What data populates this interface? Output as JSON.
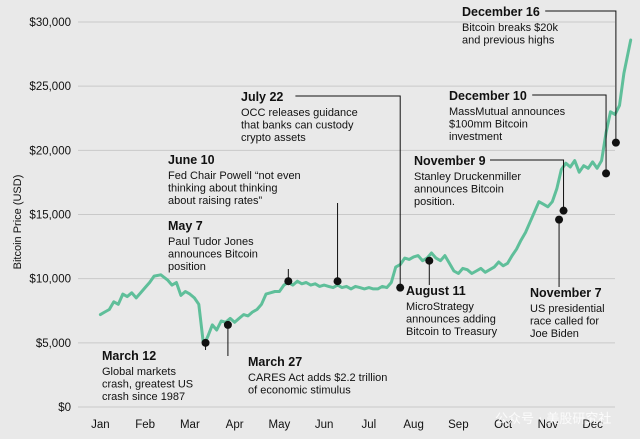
{
  "chart_data": {
    "type": "line",
    "ylabel": "Bitcoin Price (USD)",
    "ylim": [
      0,
      30000
    ],
    "y_ticks": [
      0,
      5000,
      10000,
      15000,
      20000,
      25000,
      30000
    ],
    "y_tick_labels": [
      "$0",
      "$5,000",
      "$10,000",
      "$15,000",
      "$20,000",
      "$25,000",
      "$30,000"
    ],
    "x_ticks": [
      "Jan",
      "Feb",
      "Mar",
      "Apr",
      "May",
      "Jun",
      "Jul",
      "Aug",
      "Sep",
      "Oct",
      "Nov",
      "Dec"
    ],
    "line_color": "#5fbf9a",
    "series": [
      {
        "x": [
          0.0,
          0.1,
          0.2,
          0.3,
          0.4,
          0.5,
          0.6,
          0.7,
          0.8,
          0.9,
          1.0,
          1.1,
          1.2,
          1.35,
          1.5,
          1.6,
          1.7,
          1.8,
          1.9,
          2.0,
          2.1,
          2.2,
          2.3,
          2.35,
          2.4,
          2.5,
          2.6,
          2.7,
          2.8,
          2.9,
          3.0,
          3.1,
          3.2,
          3.3,
          3.4,
          3.5,
          3.6,
          3.7,
          3.8,
          3.9,
          4.0,
          4.1,
          4.2,
          4.3,
          4.4,
          4.5,
          4.6,
          4.7,
          4.8,
          4.9,
          5.0,
          5.1,
          5.2,
          5.3,
          5.4,
          5.5,
          5.6,
          5.7,
          5.8,
          5.9,
          6.0,
          6.1,
          6.2,
          6.3,
          6.4,
          6.5,
          6.6,
          6.7,
          6.8,
          6.9,
          7.0,
          7.1,
          7.2,
          7.3,
          7.4,
          7.5,
          7.6,
          7.7,
          7.8,
          7.9,
          8.0,
          8.1,
          8.2,
          8.3,
          8.4,
          8.5,
          8.6,
          8.7,
          8.8,
          8.9,
          9.0,
          9.1,
          9.2,
          9.3,
          9.4,
          9.5,
          9.6,
          9.7,
          9.8,
          9.9,
          10.0,
          10.1,
          10.2,
          10.3,
          10.4,
          10.5,
          10.6,
          10.7,
          10.8,
          10.9,
          11.0,
          11.1,
          11.2,
          11.3,
          11.4,
          11.5,
          11.6,
          11.7,
          11.85
        ],
        "values": [
          7200,
          7400,
          7600,
          8200,
          8000,
          8800,
          8600,
          8900,
          8500,
          8900,
          9300,
          9700,
          10200,
          10300,
          9900,
          9500,
          9700,
          8700,
          9000,
          8800,
          8500,
          8000,
          5000,
          5100,
          5500,
          6400,
          6000,
          6700,
          6600,
          6900,
          6600,
          6900,
          7200,
          7100,
          7400,
          7600,
          8000,
          8800,
          8900,
          9000,
          9000,
          9500,
          9700,
          9500,
          9800,
          9600,
          9700,
          9500,
          9600,
          9400,
          9500,
          9400,
          9300,
          9500,
          9300,
          9400,
          9200,
          9400,
          9300,
          9200,
          9300,
          9200,
          9200,
          9400,
          9300,
          9700,
          10900,
          11100,
          11600,
          11500,
          11700,
          11800,
          11400,
          11600,
          12000,
          11600,
          11400,
          11800,
          11200,
          10600,
          10400,
          10800,
          10700,
          10400,
          10600,
          10800,
          10500,
          10700,
          10900,
          11300,
          11000,
          11200,
          11800,
          12300,
          13000,
          13600,
          14400,
          15200,
          16000,
          15800,
          15600,
          16000,
          17000,
          18500,
          19000,
          18700,
          19200,
          18300,
          18800,
          18600,
          19100,
          18600,
          19200,
          21400,
          23000,
          22800,
          23500,
          26000,
          28600
        ]
      }
    ],
    "annotations": [
      {
        "x": 2.35,
        "y": 5000,
        "title": "March 12",
        "lines": [
          "Global markets",
          "crash, greatest US",
          "crash since 1987"
        ]
      },
      {
        "x": 2.85,
        "y": 6400,
        "title": "March 27",
        "lines": [
          "CARES Act adds $2.2 trillion",
          "of economic stimulus"
        ]
      },
      {
        "x": 4.2,
        "y": 9800,
        "title": "May 7",
        "lines": [
          "Paul Tudor Jones",
          "announces Bitcoin",
          "position"
        ]
      },
      {
        "x": 5.3,
        "y": 9800,
        "title": "June 10",
        "lines": [
          "Fed Chair Powell “not even",
          "thinking about thinking",
          "about raising rates”"
        ]
      },
      {
        "x": 6.7,
        "y": 9300,
        "title": "July 22",
        "lines": [
          "OCC releases guidance",
          "that banks can custody",
          "crypto assets"
        ]
      },
      {
        "x": 7.35,
        "y": 11400,
        "title": "August 11",
        "lines": [
          "MicroStrategy",
          "announces adding",
          "Bitcoin to Treasury"
        ]
      },
      {
        "x": 10.25,
        "y": 14600,
        "title": "November 7",
        "lines": [
          "US presidential",
          "race called for",
          "Joe Biden"
        ]
      },
      {
        "x": 10.35,
        "y": 15300,
        "title": "November 9",
        "lines": [
          "Stanley Druckenmiller",
          "announces Bitcoin",
          "position."
        ]
      },
      {
        "x": 11.3,
        "y": 18200,
        "title": "December 10",
        "lines": [
          "MassMutual announces",
          "$100mm Bitcoin",
          "investment"
        ]
      },
      {
        "x": 11.52,
        "y": 20600,
        "title": "December 16",
        "lines": [
          "Bitcoin breaks $20k",
          "and previous highs"
        ]
      }
    ]
  },
  "watermark": "公众号 · 美股研究社"
}
